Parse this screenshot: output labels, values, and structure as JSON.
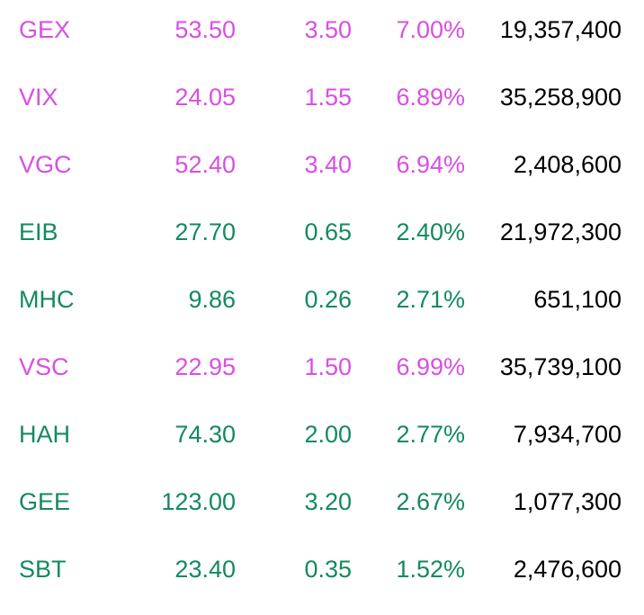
{
  "colors": {
    "ceiling": "#d94fe3",
    "up": "#138a5e",
    "volume": "#000000",
    "background": "#ffffff"
  },
  "rows": [
    {
      "symbol": "GEX",
      "price": "53.50",
      "change": "3.50",
      "percent": "7.00%",
      "volume": "19,357,400",
      "status": "ceiling"
    },
    {
      "symbol": "VIX",
      "price": "24.05",
      "change": "1.55",
      "percent": "6.89%",
      "volume": "35,258,900",
      "status": "ceiling"
    },
    {
      "symbol": "VGC",
      "price": "52.40",
      "change": "3.40",
      "percent": "6.94%",
      "volume": "2,408,600",
      "status": "ceiling"
    },
    {
      "symbol": "EIB",
      "price": "27.70",
      "change": "0.65",
      "percent": "2.40%",
      "volume": "21,972,300",
      "status": "up"
    },
    {
      "symbol": "MHC",
      "price": "9.86",
      "change": "0.26",
      "percent": "2.71%",
      "volume": "651,100",
      "status": "up"
    },
    {
      "symbol": "VSC",
      "price": "22.95",
      "change": "1.50",
      "percent": "6.99%",
      "volume": "35,739,100",
      "status": "ceiling"
    },
    {
      "symbol": "HAH",
      "price": "74.30",
      "change": "2.00",
      "percent": "2.77%",
      "volume": "7,934,700",
      "status": "up"
    },
    {
      "symbol": "GEE",
      "price": "123.00",
      "change": "3.20",
      "percent": "2.67%",
      "volume": "1,077,300",
      "status": "up"
    },
    {
      "symbol": "SBT",
      "price": "23.40",
      "change": "0.35",
      "percent": "1.52%",
      "volume": "2,476,600",
      "status": "up"
    }
  ]
}
